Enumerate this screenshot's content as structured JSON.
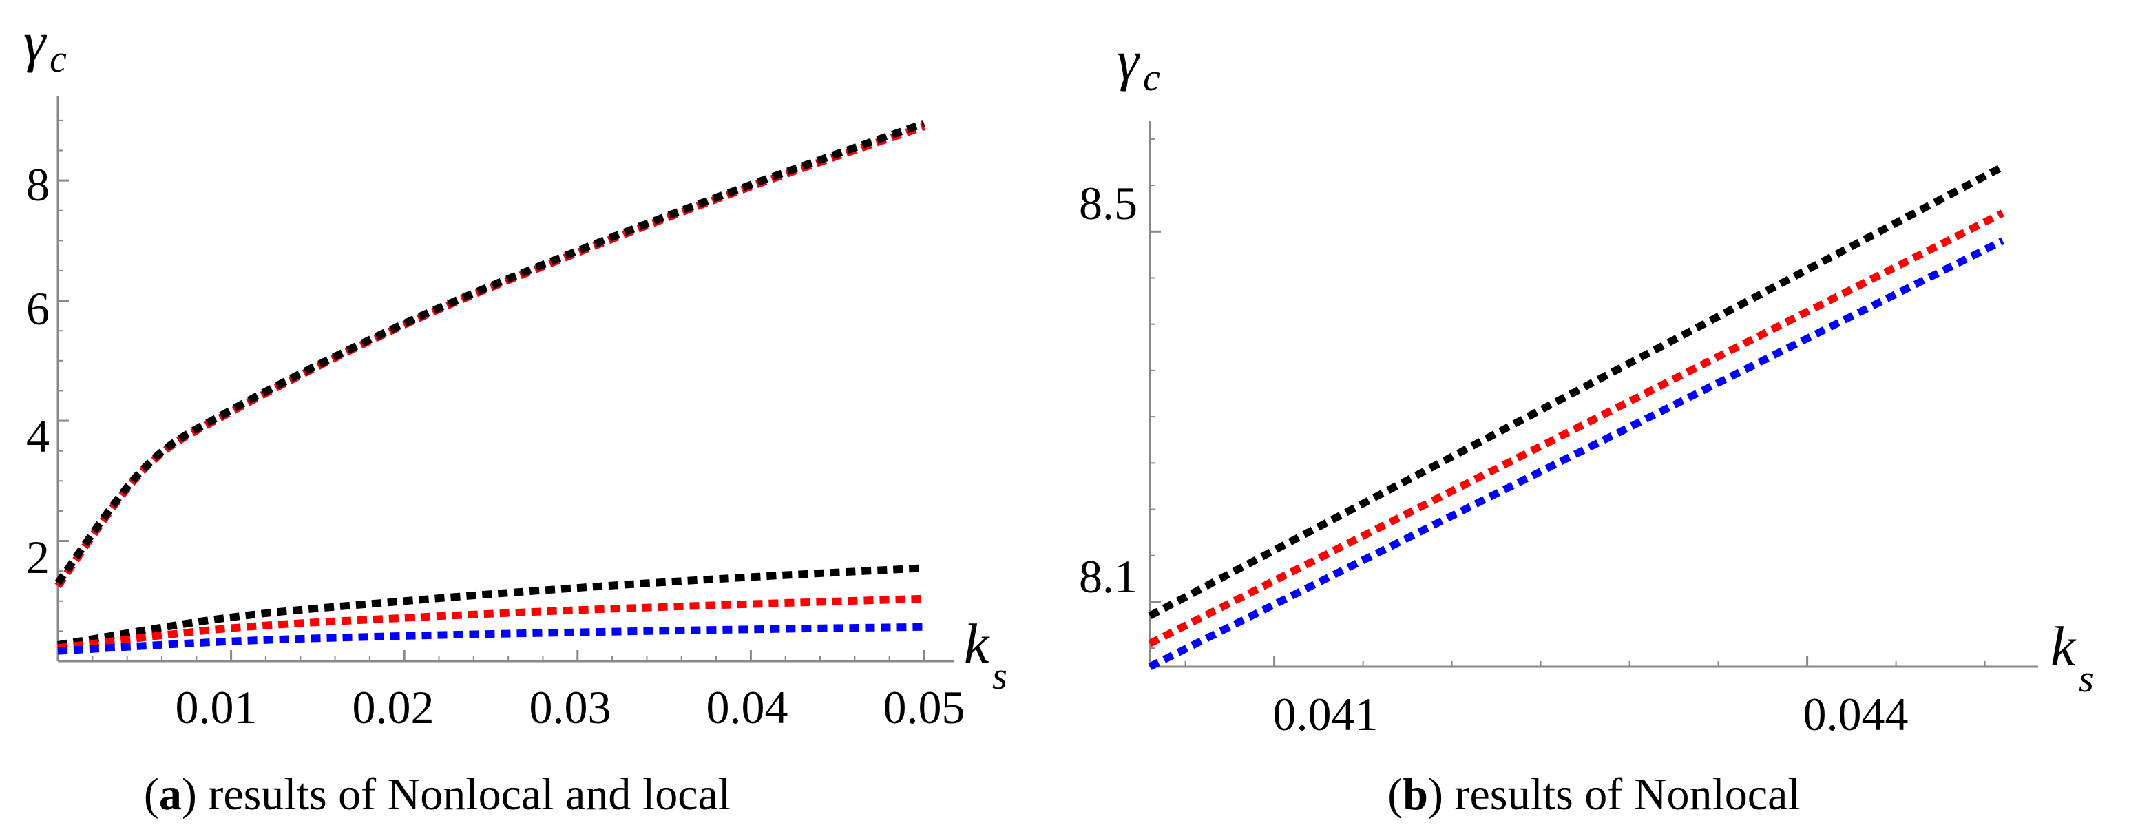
{
  "chart_data": [
    {
      "type": "line",
      "panel_letter": "a",
      "caption": "results of Nonlocal and local",
      "ylabel_symbol": "γ",
      "ylabel_subscript": "c",
      "xlabel_symbol": "k",
      "xlabel_subscript": "s",
      "xlim": [
        0,
        0.05
      ],
      "ylim": [
        0,
        9.4
      ],
      "xticks": [
        0.01,
        0.02,
        0.03,
        0.04,
        0.05
      ],
      "xtick_labels": [
        "0.01",
        "0.02",
        "0.03",
        "0.04",
        "0.05"
      ],
      "yticks": [
        2,
        4,
        6,
        8
      ],
      "ytick_labels": [
        "2",
        "4",
        "6",
        "8"
      ],
      "series": [
        {
          "name": "nonlocal-blue",
          "color": "#0000ff",
          "x": [
            0,
            0.005,
            0.01,
            0.02,
            0.03,
            0.04,
            0.05
          ],
          "y": [
            1.25,
            3.2,
            4.15,
            5.6,
            6.8,
            7.9,
            8.9
          ]
        },
        {
          "name": "nonlocal-red",
          "color": "#ff0000",
          "x": [
            0,
            0.005,
            0.01,
            0.02,
            0.03,
            0.04,
            0.05
          ],
          "y": [
            1.25,
            3.2,
            4.15,
            5.6,
            6.8,
            7.9,
            8.9
          ]
        },
        {
          "name": "nonlocal-black",
          "color": "#000000",
          "x": [
            0,
            0.005,
            0.01,
            0.02,
            0.03,
            0.04,
            0.05
          ],
          "y": [
            1.3,
            3.22,
            4.18,
            5.62,
            6.83,
            7.93,
            8.95
          ]
        },
        {
          "name": "local-black",
          "color": "#000000",
          "x": [
            0,
            0.01,
            0.02,
            0.03,
            0.04,
            0.05
          ],
          "y": [
            0.27,
            0.73,
            1.0,
            1.22,
            1.4,
            1.55
          ]
        },
        {
          "name": "local-red",
          "color": "#ff0000",
          "x": [
            0,
            0.01,
            0.02,
            0.03,
            0.04,
            0.05
          ],
          "y": [
            0.22,
            0.55,
            0.72,
            0.85,
            0.95,
            1.04
          ]
        },
        {
          "name": "local-blue",
          "color": "#0000ff",
          "x": [
            0,
            0.01,
            0.02,
            0.03,
            0.04,
            0.05
          ],
          "y": [
            0.17,
            0.33,
            0.42,
            0.48,
            0.53,
            0.57
          ]
        }
      ]
    },
    {
      "type": "line",
      "panel_letter": "b",
      "caption": "results of Nonlocal",
      "ylabel_symbol": "γ",
      "ylabel_subscript": "c",
      "xlabel_symbol": "k",
      "xlabel_subscript": "s",
      "xlim": [
        0.0403,
        0.0453
      ],
      "ylim": [
        8.03,
        8.62
      ],
      "xticks": [
        0.041,
        0.044
      ],
      "xtick_labels": [
        "0.041",
        "0.044"
      ],
      "yticks": [
        8.1,
        8.5
      ],
      "ytick_labels": [
        "8.1",
        "8.5"
      ],
      "series": [
        {
          "name": "black",
          "color": "#000000",
          "x": [
            0.0403,
            0.0451
          ],
          "y": [
            8.085,
            8.57
          ]
        },
        {
          "name": "red",
          "color": "#ff0000",
          "x": [
            0.0403,
            0.0451
          ],
          "y": [
            8.055,
            8.52
          ]
        },
        {
          "name": "blue",
          "color": "#0000ff",
          "x": [
            0.0403,
            0.0451
          ],
          "y": [
            8.03,
            8.49
          ]
        }
      ]
    }
  ]
}
